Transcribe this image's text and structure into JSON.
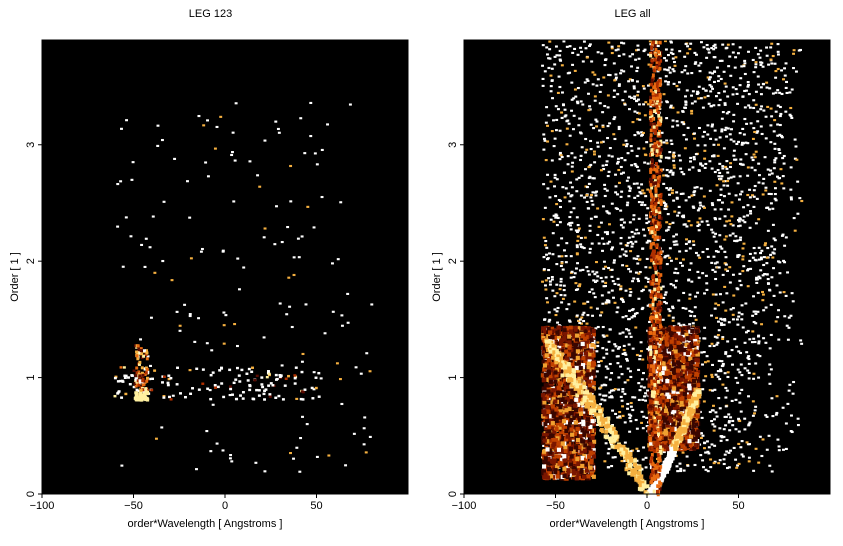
{
  "chart_data": [
    {
      "type": "heatmap",
      "title": "LEG 123",
      "xlabel": "order*Wavelength [ Angstroms ]",
      "ylabel": "Order [ 1 ]",
      "xlim": [
        -100,
        100
      ],
      "ylim": [
        0,
        3.9
      ],
      "xticks": [
        -100,
        -50,
        0,
        50
      ],
      "yticks": [
        0,
        1,
        2,
        3
      ],
      "grid": false,
      "colormap": [
        "#000000",
        "#5a0a00",
        "#b03000",
        "#e86a10",
        "#f5b040",
        "#fff0a0",
        "#ffffff"
      ],
      "background": "#000000",
      "features": {
        "bright_band": {
          "x": [
            -62,
            52
          ],
          "y": [
            0.82,
            1.1
          ]
        },
        "hot_spot": {
          "x": [
            -50,
            -43
          ],
          "y": [
            0.82,
            1.3
          ]
        },
        "scatter_region": {
          "x": [
            -60,
            80
          ],
          "y": [
            0.2,
            3.4
          ]
        },
        "scatter_density": "sparse"
      }
    },
    {
      "type": "heatmap",
      "title": "LEG all",
      "xlabel": "order*Wavelength [ Angstroms ]",
      "ylabel": "Order [ 1 ]",
      "xlim": [
        -100,
        100
      ],
      "ylim": [
        0,
        3.9
      ],
      "xticks": [
        -100,
        -50,
        0,
        50
      ],
      "yticks": [
        0,
        1,
        2,
        3
      ],
      "grid": false,
      "colormap": [
        "#000000",
        "#5a0a00",
        "#b03000",
        "#e86a10",
        "#f5b040",
        "#fff0a0",
        "#ffffff"
      ],
      "background": "#000000",
      "features": {
        "dense_block_left": {
          "x": [
            -58,
            -30
          ],
          "y": [
            0.15,
            1.45
          ]
        },
        "dense_block_right": {
          "x": [
            0,
            27
          ],
          "y": [
            0.4,
            1.45
          ]
        },
        "vertical_streak": {
          "x": [
            1,
            7
          ],
          "y": [
            0.0,
            3.9
          ]
        },
        "arc_right": {
          "from": [
            0,
            0
          ],
          "to": [
            27,
            0.9
          ]
        },
        "arc_left": {
          "from": [
            -2,
            0.05
          ],
          "to": [
            -55,
            1.3
          ]
        },
        "scatter_region": {
          "x": [
            -58,
            84
          ],
          "y": [
            0.2,
            3.9
          ]
        },
        "scatter_density": "dense"
      }
    }
  ]
}
